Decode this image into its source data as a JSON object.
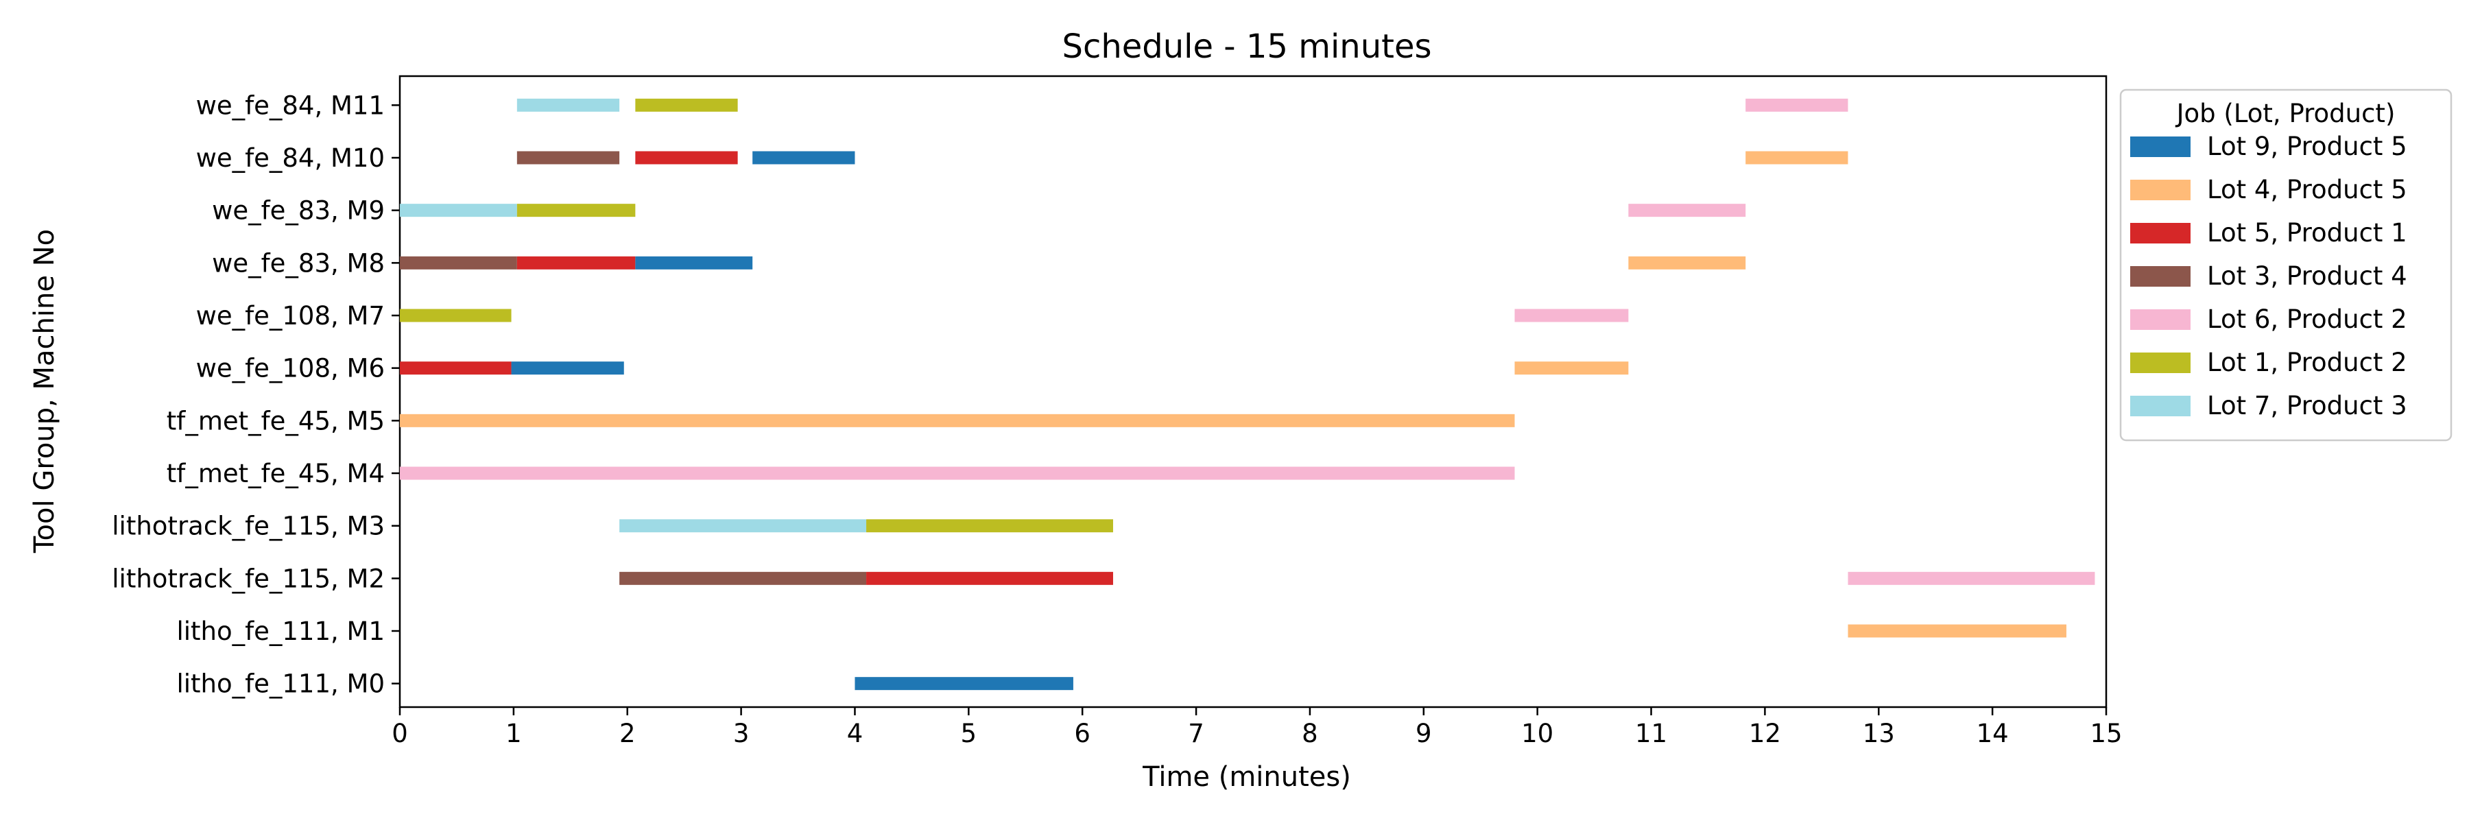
{
  "chart_data": {
    "type": "gantt",
    "title": "Schedule - 15 minutes",
    "xlabel": "Time (minutes)",
    "ylabel": "Tool Group, Machine No",
    "xlim": [
      0,
      15
    ],
    "xticks": [
      0,
      1,
      2,
      3,
      4,
      5,
      6,
      7,
      8,
      9,
      10,
      11,
      12,
      13,
      14,
      15
    ],
    "grid": false,
    "legend_position": "outside-right-top",
    "legend_title": "Job (Lot, Product)",
    "machines": [
      "we_fe_84, M11",
      "we_fe_84, M10",
      "we_fe_83, M9",
      "we_fe_83, M8",
      "we_fe_108, M7",
      "we_fe_108, M6",
      "tf_met_fe_45, M5",
      "tf_met_fe_45, M4",
      "lithotrack_fe_115, M3",
      "lithotrack_fe_115, M2",
      "litho_fe_111, M1",
      "litho_fe_111, M0"
    ],
    "series": [
      {
        "name": "Lot 9, Product 5",
        "color": "#1f77b4"
      },
      {
        "name": "Lot 4, Product 5",
        "color": "#ffbb78"
      },
      {
        "name": "Lot 5, Product 1",
        "color": "#d62728"
      },
      {
        "name": "Lot 3, Product 4",
        "color": "#8c564b"
      },
      {
        "name": "Lot 6, Product 2",
        "color": "#f7b6d2"
      },
      {
        "name": "Lot 1, Product 2",
        "color": "#bcbd22"
      },
      {
        "name": "Lot 7, Product 3",
        "color": "#9edae5"
      }
    ],
    "tasks": [
      {
        "machine": "we_fe_84, M11",
        "job": "Lot 7, Product 3",
        "start": 1.03,
        "end": 1.93
      },
      {
        "machine": "we_fe_84, M11",
        "job": "Lot 1, Product 2",
        "start": 2.07,
        "end": 2.97
      },
      {
        "machine": "we_fe_84, M11",
        "job": "Lot 6, Product 2",
        "start": 11.83,
        "end": 12.73
      },
      {
        "machine": "we_fe_84, M10",
        "job": "Lot 3, Product 4",
        "start": 1.03,
        "end": 1.93
      },
      {
        "machine": "we_fe_84, M10",
        "job": "Lot 5, Product 1",
        "start": 2.07,
        "end": 2.97
      },
      {
        "machine": "we_fe_84, M10",
        "job": "Lot 9, Product 5",
        "start": 3.1,
        "end": 4.0
      },
      {
        "machine": "we_fe_84, M10",
        "job": "Lot 4, Product 5",
        "start": 11.83,
        "end": 12.73
      },
      {
        "machine": "we_fe_83, M9",
        "job": "Lot 7, Product 3",
        "start": 0.0,
        "end": 1.03
      },
      {
        "machine": "we_fe_83, M9",
        "job": "Lot 1, Product 2",
        "start": 1.03,
        "end": 2.07
      },
      {
        "machine": "we_fe_83, M9",
        "job": "Lot 6, Product 2",
        "start": 10.8,
        "end": 11.83
      },
      {
        "machine": "we_fe_83, M8",
        "job": "Lot 3, Product 4",
        "start": 0.0,
        "end": 1.03
      },
      {
        "machine": "we_fe_83, M8",
        "job": "Lot 5, Product 1",
        "start": 1.03,
        "end": 2.07
      },
      {
        "machine": "we_fe_83, M8",
        "job": "Lot 9, Product 5",
        "start": 2.07,
        "end": 3.1
      },
      {
        "machine": "we_fe_83, M8",
        "job": "Lot 4, Product 5",
        "start": 10.8,
        "end": 11.83
      },
      {
        "machine": "we_fe_108, M7",
        "job": "Lot 1, Product 2",
        "start": 0.0,
        "end": 0.98
      },
      {
        "machine": "we_fe_108, M7",
        "job": "Lot 6, Product 2",
        "start": 9.8,
        "end": 10.8
      },
      {
        "machine": "we_fe_108, M6",
        "job": "Lot 5, Product 1",
        "start": 0.0,
        "end": 0.98
      },
      {
        "machine": "we_fe_108, M6",
        "job": "Lot 9, Product 5",
        "start": 0.98,
        "end": 1.97
      },
      {
        "machine": "we_fe_108, M6",
        "job": "Lot 4, Product 5",
        "start": 9.8,
        "end": 10.8
      },
      {
        "machine": "tf_met_fe_45, M5",
        "job": "Lot 4, Product 5",
        "start": 0.0,
        "end": 9.8
      },
      {
        "machine": "tf_met_fe_45, M4",
        "job": "Lot 6, Product 2",
        "start": 0.0,
        "end": 9.8
      },
      {
        "machine": "lithotrack_fe_115, M3",
        "job": "Lot 7, Product 3",
        "start": 1.93,
        "end": 4.1
      },
      {
        "machine": "lithotrack_fe_115, M3",
        "job": "Lot 1, Product 2",
        "start": 4.1,
        "end": 6.27
      },
      {
        "machine": "lithotrack_fe_115, M2",
        "job": "Lot 3, Product 4",
        "start": 1.93,
        "end": 4.1
      },
      {
        "machine": "lithotrack_fe_115, M2",
        "job": "Lot 5, Product 1",
        "start": 4.1,
        "end": 6.27
      },
      {
        "machine": "lithotrack_fe_115, M2",
        "job": "Lot 6, Product 2",
        "start": 12.73,
        "end": 14.9
      },
      {
        "machine": "litho_fe_111, M1",
        "job": "Lot 4, Product 5",
        "start": 12.73,
        "end": 14.65
      },
      {
        "machine": "litho_fe_111, M0",
        "job": "Lot 9, Product 5",
        "start": 4.0,
        "end": 5.92
      }
    ]
  }
}
